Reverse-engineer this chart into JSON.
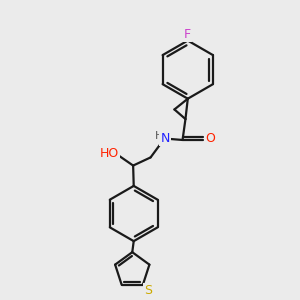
{
  "background_color": "#ebebeb",
  "bond_color": "#1a1a1a",
  "atom_colors": {
    "F": "#cc44cc",
    "O": "#ff2200",
    "N": "#2222ff",
    "S": "#ccaa00",
    "H": "#555555",
    "C": "#1a1a1a"
  },
  "figsize": [
    3.0,
    3.0
  ],
  "dpi": 100,
  "lw": 1.6
}
